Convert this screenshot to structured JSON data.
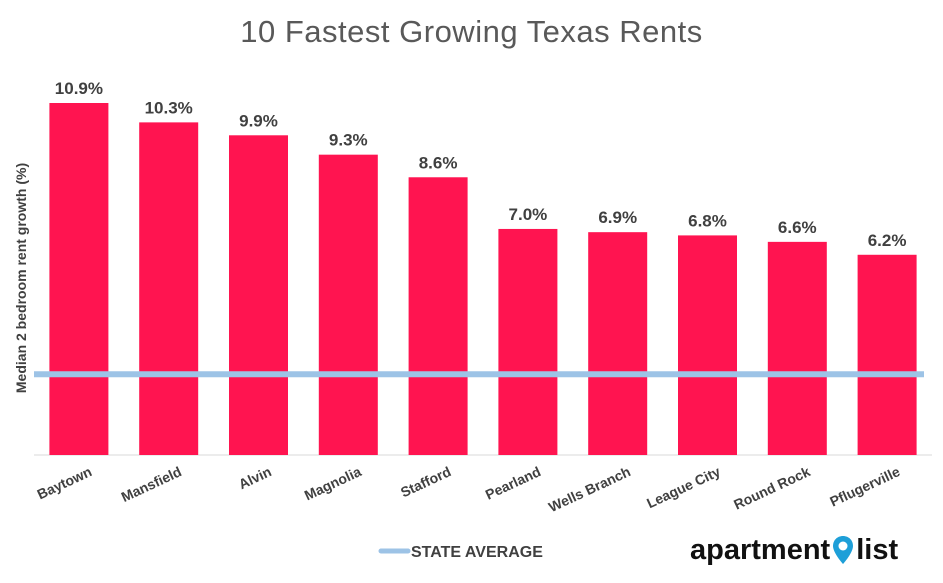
{
  "chart_data": {
    "type": "bar",
    "title": "10 Fastest Growing Texas Rents",
    "xlabel": "",
    "ylabel": "Median 2 bedroom rent growth (%)",
    "categories": [
      "Baytown",
      "Mansfield",
      "Alvin",
      "Magnolia",
      "Stafford",
      "Pearland",
      "Wells Branch",
      "League City",
      "Round Rock",
      "Pflugerville"
    ],
    "values": [
      10.9,
      10.3,
      9.9,
      9.3,
      8.6,
      7.0,
      6.9,
      6.8,
      6.6,
      6.2
    ],
    "data_labels": [
      "10.9%",
      "10.3%",
      "9.9%",
      "9.3%",
      "8.6%",
      "7.0%",
      "6.9%",
      "6.8%",
      "6.6%",
      "6.2%"
    ],
    "ylim": [
      0,
      10.9
    ],
    "reference_line": {
      "name": "STATE AVERAGE",
      "value": 2.5
    },
    "legend": {
      "position": "bottom",
      "entries": [
        "STATE AVERAGE"
      ]
    },
    "grid": false,
    "colors": {
      "bar": "#FF1450",
      "reference_line": "#9DC3E6",
      "text": "#404040",
      "title": "#595959"
    }
  },
  "logo": {
    "text_left": "apartment",
    "text_right": "list",
    "icon": "location-pin-icon"
  }
}
